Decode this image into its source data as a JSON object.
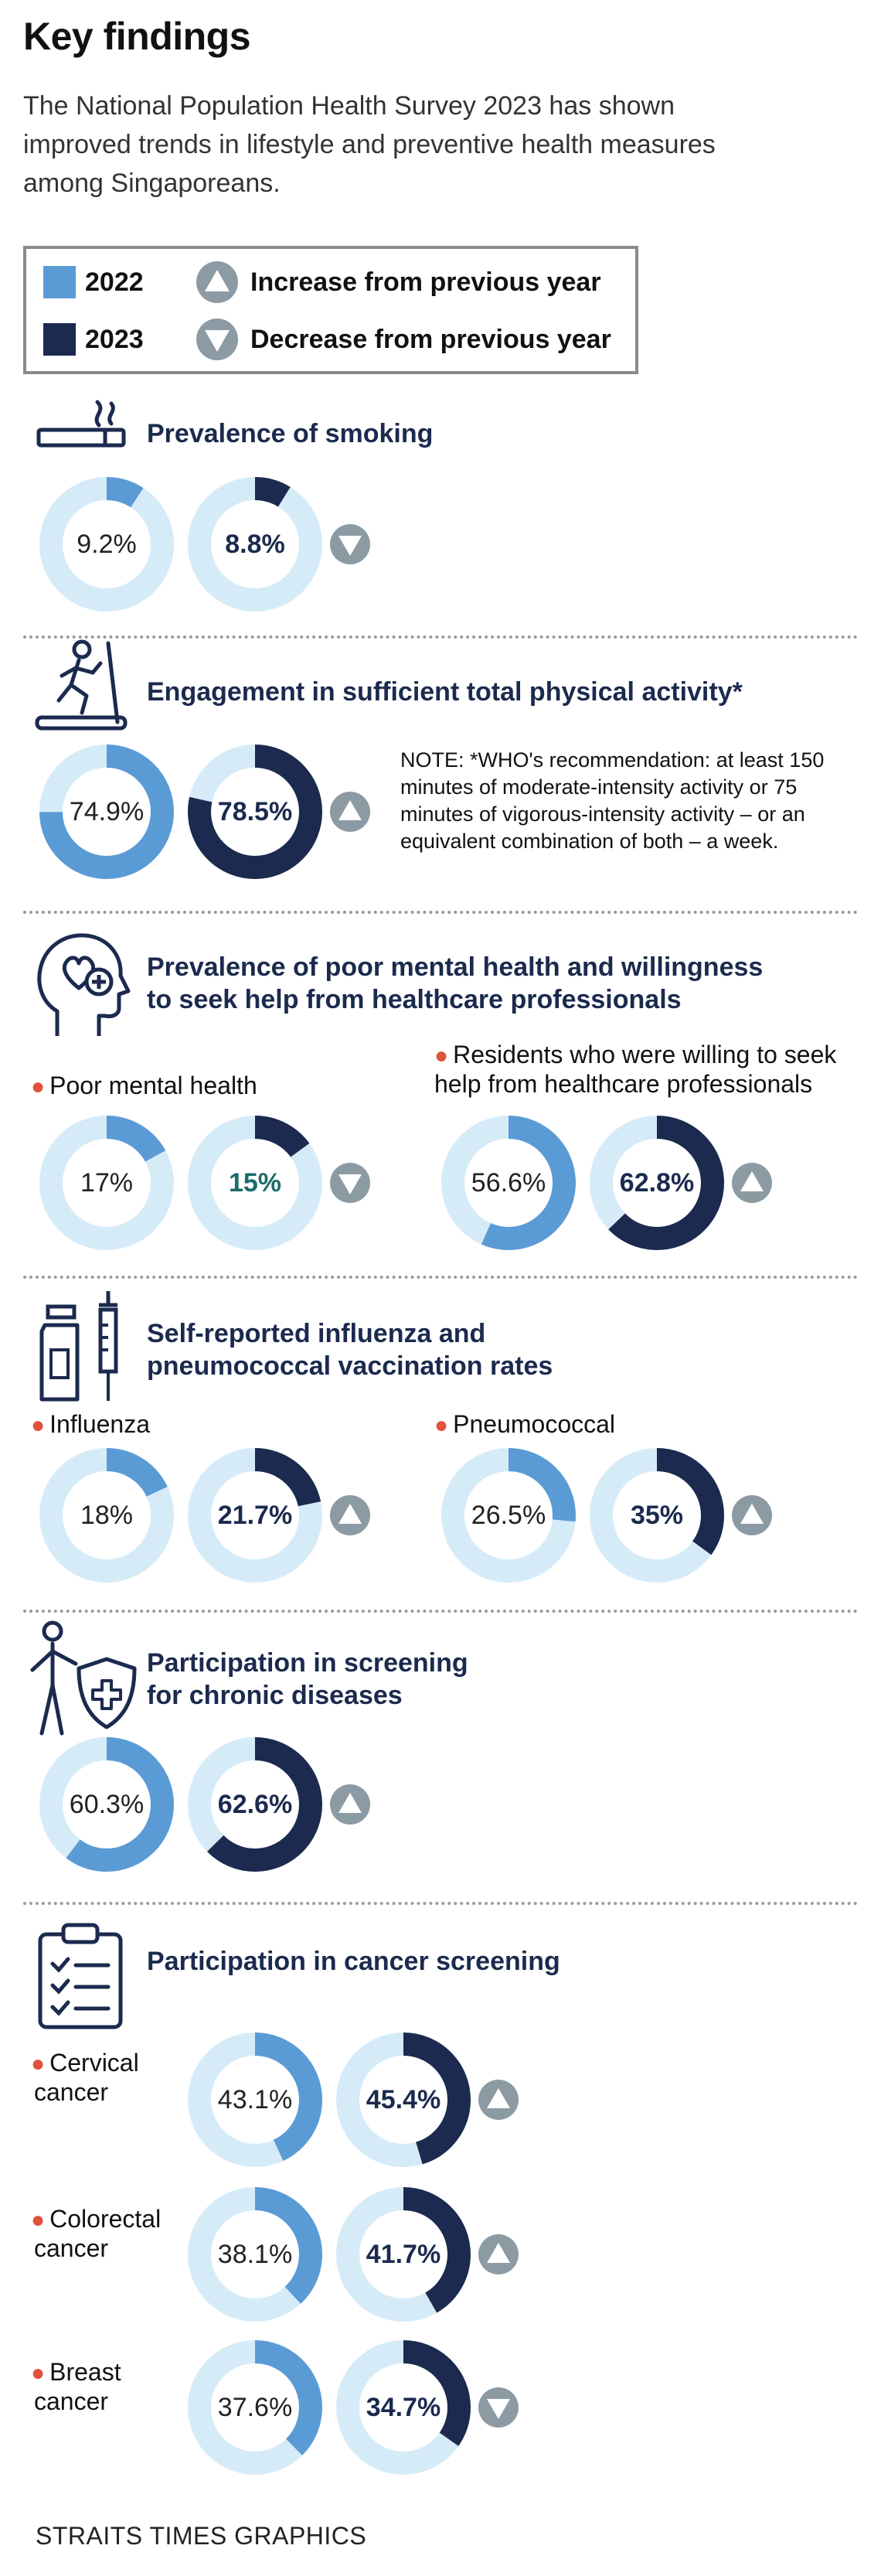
{
  "title": "Key findings",
  "intro": "The National Population Health Survey 2023 has shown improved trends in lifestyle and preventive health measures among Singaporeans.",
  "legend": {
    "year_2022": "2022",
    "year_2023": "2023",
    "increase": "Increase from previous year",
    "decrease": "Decrease from previous year"
  },
  "colors": {
    "year_2022": "#5b9bd5",
    "year_2023": "#1b2a4e",
    "track": "#d6ebf8",
    "arrow_badge": "#8c9aa3",
    "bullet": "#e0523a",
    "highlight_teal": "#1b6b6b"
  },
  "sections": {
    "smoking": {
      "title": "Prevalence of smoking",
      "icon": "cigarette-icon"
    },
    "activity": {
      "title": "Engagement in sufficient total physical activity*",
      "icon": "treadmill-runner-icon",
      "note": "NOTE: *WHO's recommendation: at least 150 minutes of moderate-intensity activity or 75 minutes of vigorous-intensity activity – or an equivalent combination of both – a week."
    },
    "mental": {
      "title_line1": "Prevalence of poor mental health and willingness",
      "title_line2": "to seek help from healthcare professionals",
      "icon": "head-heart-icon",
      "label_poor": "Poor mental health",
      "label_help_line1": "Residents who were willing to seek",
      "label_help_line2": "help from healthcare professionals"
    },
    "vaccination": {
      "title_line1": "Self-reported influenza and",
      "title_line2": "pneumococcal vaccination rates",
      "icon": "vaccine-syringe-icon",
      "label_flu": "Influenza",
      "label_pneumo": "Pneumococcal"
    },
    "chronic": {
      "title_line1": "Participation in screening",
      "title_line2": "for chronic diseases",
      "icon": "person-shield-icon"
    },
    "cancer": {
      "title": "Participation in cancer screening",
      "icon": "clipboard-checklist-icon",
      "label_cervical_1": "Cervical",
      "label_cervical_2": "cancer",
      "label_colorectal_1": "Colorectal",
      "label_colorectal_2": "cancer",
      "label_breast_1": "Breast",
      "label_breast_2": "cancer"
    }
  },
  "chart_data": [
    {
      "type": "donut",
      "metric": "Prevalence of smoking",
      "unit": "%",
      "series": [
        {
          "name": "2022",
          "value": 9.2,
          "label": "9.2%"
        },
        {
          "name": "2023",
          "value": 8.8,
          "label": "8.8%"
        }
      ],
      "change": "decrease"
    },
    {
      "type": "donut",
      "metric": "Engagement in sufficient total physical activity*",
      "unit": "%",
      "series": [
        {
          "name": "2022",
          "value": 74.9,
          "label": "74.9%"
        },
        {
          "name": "2023",
          "value": 78.5,
          "label": "78.5%"
        }
      ],
      "change": "increase"
    },
    {
      "type": "donut",
      "metric": "Poor mental health",
      "unit": "%",
      "series": [
        {
          "name": "2022",
          "value": 17,
          "label": "17%"
        },
        {
          "name": "2023",
          "value": 15,
          "label": "15%"
        }
      ],
      "change": "decrease"
    },
    {
      "type": "donut",
      "metric": "Residents who were willing to seek help from healthcare professionals",
      "unit": "%",
      "series": [
        {
          "name": "2022",
          "value": 56.6,
          "label": "56.6%"
        },
        {
          "name": "2023",
          "value": 62.8,
          "label": "62.8%"
        }
      ],
      "change": "increase"
    },
    {
      "type": "donut",
      "metric": "Influenza",
      "unit": "%",
      "series": [
        {
          "name": "2022",
          "value": 18,
          "label": "18%"
        },
        {
          "name": "2023",
          "value": 21.7,
          "label": "21.7%"
        }
      ],
      "change": "increase"
    },
    {
      "type": "donut",
      "metric": "Pneumococcal",
      "unit": "%",
      "series": [
        {
          "name": "2022",
          "value": 26.5,
          "label": "26.5%"
        },
        {
          "name": "2023",
          "value": 35,
          "label": "35%"
        }
      ],
      "change": "increase"
    },
    {
      "type": "donut",
      "metric": "Participation in screening for chronic diseases",
      "unit": "%",
      "series": [
        {
          "name": "2022",
          "value": 60.3,
          "label": "60.3%"
        },
        {
          "name": "2023",
          "value": 62.6,
          "label": "62.6%"
        }
      ],
      "change": "increase"
    },
    {
      "type": "donut",
      "metric": "Cervical cancer",
      "unit": "%",
      "series": [
        {
          "name": "2022",
          "value": 43.1,
          "label": "43.1%"
        },
        {
          "name": "2023",
          "value": 45.4,
          "label": "45.4%"
        }
      ],
      "change": "increase"
    },
    {
      "type": "donut",
      "metric": "Colorectal cancer",
      "unit": "%",
      "series": [
        {
          "name": "2022",
          "value": 38.1,
          "label": "38.1%"
        },
        {
          "name": "2023",
          "value": 41.7,
          "label": "41.7%"
        }
      ],
      "change": "increase"
    },
    {
      "type": "donut",
      "metric": "Breast cancer",
      "unit": "%",
      "series": [
        {
          "name": "2022",
          "value": 37.6,
          "label": "37.6%"
        },
        {
          "name": "2023",
          "value": 34.7,
          "label": "34.7%"
        }
      ],
      "change": "decrease"
    }
  ],
  "credit": "STRAITS TIMES GRAPHICS"
}
